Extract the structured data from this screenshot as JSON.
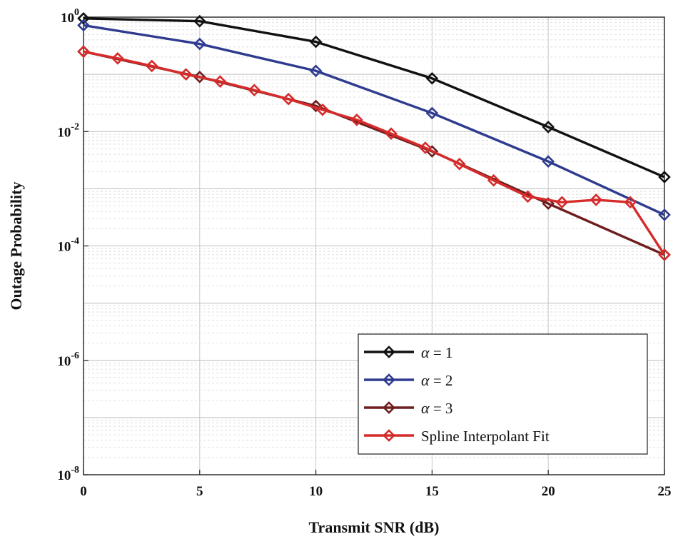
{
  "chart_data": {
    "type": "line",
    "title": "",
    "xlabel": "Transmit SNR (dB)",
    "ylabel": "Outage Probability",
    "yscale": "log",
    "xlim": [
      0,
      25
    ],
    "ylim_exp": [
      -8,
      0
    ],
    "xticks": [
      0,
      5,
      10,
      15,
      20,
      25
    ],
    "yticks": [
      {
        "base": "10",
        "exp": "0",
        "value": 0
      },
      {
        "base": "10",
        "exp": "-2",
        "value": -2
      },
      {
        "base": "10",
        "exp": "-4",
        "value": -4
      },
      {
        "base": "10",
        "exp": "-6",
        "value": -6
      },
      {
        "base": "10",
        "exp": "-8",
        "value": -8
      }
    ],
    "grid": true,
    "legend_position": "bottom-right",
    "series": [
      {
        "name": "α = 1",
        "legend_symbol": "α",
        "legend_rest": " = 1",
        "color": "#111111",
        "marker": "diamond",
        "x": [
          0,
          5,
          10,
          15,
          20,
          25
        ],
        "y": [
          0.95,
          0.85,
          0.37,
          0.085,
          0.012,
          0.0016
        ]
      },
      {
        "name": "α = 2",
        "legend_symbol": "α",
        "legend_rest": " = 2",
        "color": "#2e3b8f",
        "marker": "diamond",
        "x": [
          0,
          5,
          10,
          15,
          20,
          25
        ],
        "y": [
          0.72,
          0.34,
          0.115,
          0.021,
          0.003,
          0.00035
        ]
      },
      {
        "name": "α = 3",
        "legend_symbol": "α",
        "legend_rest": " = 3",
        "color": "#6e1e1e",
        "marker": "diamond",
        "x": [
          0,
          5,
          10,
          15,
          20,
          25
        ],
        "y": [
          0.25,
          0.09,
          0.028,
          0.0045,
          0.00055,
          7e-05
        ]
      },
      {
        "name": "Spline Interpolant Fit",
        "legend_symbol": "",
        "legend_rest": "Spline Interpolant Fit",
        "color": "#d62b2b",
        "marker": "diamond",
        "x": [
          0,
          1.47,
          2.94,
          4.41,
          5.88,
          7.35,
          8.82,
          10.29,
          11.76,
          13.24,
          14.71,
          16.18,
          17.65,
          19.12,
          20.59,
          22.06,
          23.53,
          25
        ],
        "y": [
          0.25,
          0.19,
          0.14,
          0.1,
          0.075,
          0.053,
          0.037,
          0.024,
          0.016,
          0.0092,
          0.0052,
          0.0027,
          0.0014,
          0.00073,
          0.00058,
          0.00064,
          0.00058,
          7e-05
        ]
      }
    ]
  }
}
